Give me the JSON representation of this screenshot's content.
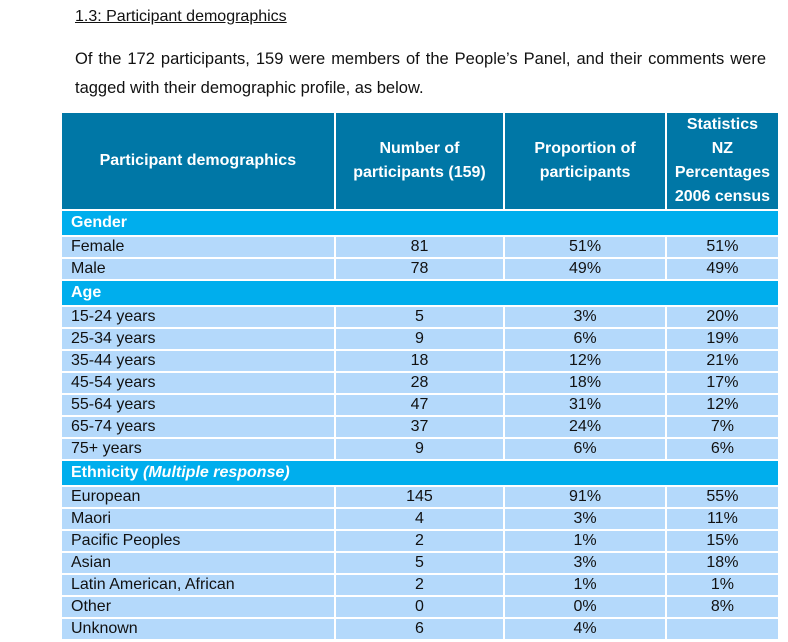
{
  "title": "1.3: Participant demographics",
  "paragraph": "Of the 172 participants, 159 were members of the People’s Panel, and their comments were tagged with their demographic profile, as below.",
  "headers": [
    "Participant demographics",
    "Number of participants (159)",
    "Proportion of participants",
    "Statistics NZ Percentages 2006 census"
  ],
  "sections": [
    {
      "label": "Gender",
      "note": "",
      "rows": [
        [
          "Female",
          "81",
          "51%",
          "51%"
        ],
        [
          "Male",
          "78",
          "49%",
          "49%"
        ]
      ]
    },
    {
      "label": "Age",
      "note": "",
      "rows": [
        [
          "15-24 years",
          "5",
          "3%",
          "20%"
        ],
        [
          "25-34 years",
          "9",
          "6%",
          "19%"
        ],
        [
          "35-44 years",
          "18",
          "12%",
          "21%"
        ],
        [
          "45-54 years",
          "28",
          "18%",
          "17%"
        ],
        [
          "55-64 years",
          "47",
          "31%",
          "12%"
        ],
        [
          "65-74 years",
          "37",
          "24%",
          "7%"
        ],
        [
          "75+ years",
          "9",
          "6%",
          "6%"
        ]
      ]
    },
    {
      "label": "Ethnicity",
      "note": "(Multiple response)",
      "rows": [
        [
          "European",
          "145",
          "91%",
          "55%"
        ],
        [
          "Maori",
          "4",
          "3%",
          "11%"
        ],
        [
          "Pacific Peoples",
          "2",
          "1%",
          "15%"
        ],
        [
          "Asian",
          "5",
          "3%",
          "18%"
        ],
        [
          "Latin American, African",
          "2",
          "1%",
          "1%"
        ],
        [
          "Other",
          "0",
          "0%",
          "8%"
        ],
        [
          "Unknown",
          "6",
          "4%",
          ""
        ]
      ]
    }
  ],
  "colors": {
    "header": "#0077a6",
    "section": "#00aeed",
    "row": "#b4d9fb"
  }
}
